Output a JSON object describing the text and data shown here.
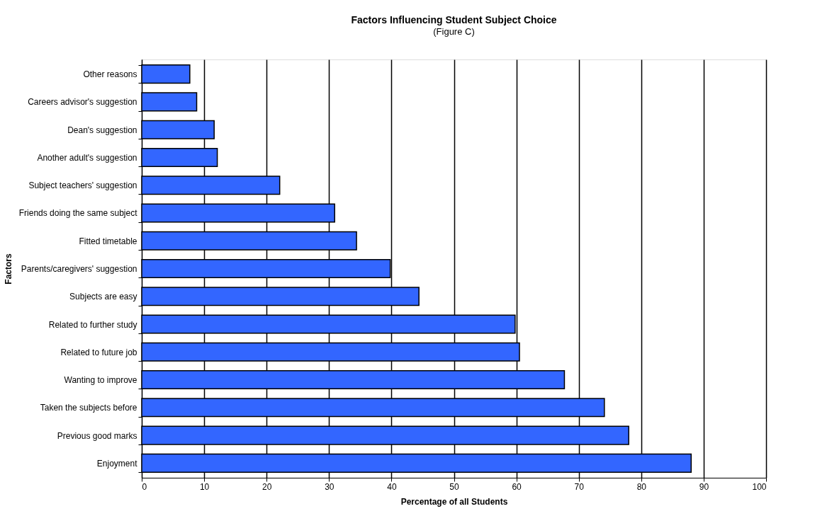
{
  "chart_data": {
    "type": "bar",
    "orientation": "horizontal",
    "title": "Factors Influencing Student Subject Choice",
    "subtitle": "(Figure C)",
    "xlabel": "Percentage of all Students",
    "ylabel": "Factors",
    "categories": [
      "Other reasons",
      "Careers advisor's suggestion",
      "Dean's suggestion",
      "Another adult's suggestion",
      "Subject teachers' suggestion",
      "Friends doing the same subject",
      "Fitted timetable",
      "Parents/caregivers' suggestion",
      "Subjects are easy",
      "Related to further study",
      "Related to future job",
      "Wanting to improve",
      "Taken the subjects before",
      "Previous good marks",
      "Enjoyment"
    ],
    "values": [
      7.7,
      8.8,
      11.6,
      12.1,
      22.1,
      30.9,
      34.4,
      39.8,
      44.4,
      59.8,
      60.5,
      67.7,
      74.1,
      78.0,
      88.0
    ],
    "color": "#3366ff",
    "xlim": [
      0,
      100
    ],
    "xticks": [
      0,
      10,
      20,
      30,
      40,
      50,
      60,
      70,
      80,
      90,
      100
    ],
    "grid": "x"
  }
}
